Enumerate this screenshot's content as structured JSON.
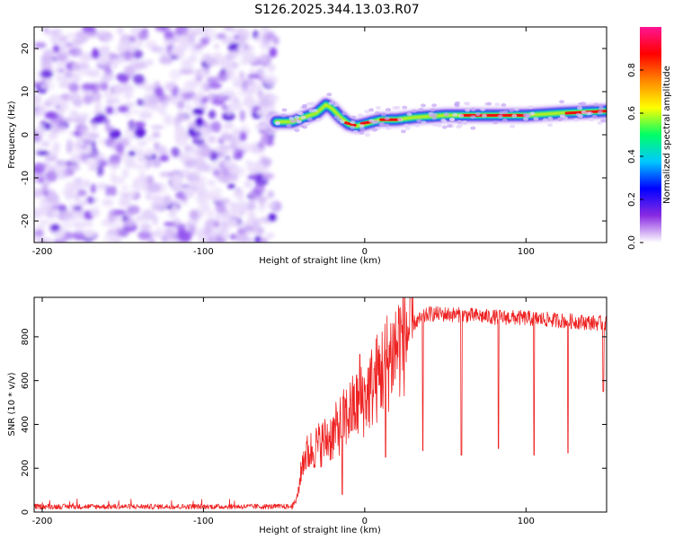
{
  "title": "S126.2025.344.13.03.R07",
  "colors": {
    "snr_line": "#ee2222",
    "speckle": "#7b2cf0",
    "background": "#ffffff"
  },
  "chart_data": [
    {
      "id": "spectrogram",
      "type": "heatmap",
      "xlabel": "Height of straight line (km)",
      "ylabel": "Frequency (Hz)",
      "xlim": [
        -205,
        150
      ],
      "ylim": [
        -25,
        25
      ],
      "xticks": [
        -200,
        -100,
        0,
        100
      ],
      "xtick_labels": [
        "-200",
        "-100",
        "0",
        "100"
      ],
      "yticks": [
        -20,
        -10,
        0,
        10,
        20
      ],
      "ytick_labels": [
        "-20",
        "-10",
        "0",
        "10",
        "20"
      ],
      "noise_region_x": [
        -205,
        -55
      ],
      "ridge_track": [
        {
          "x": -55,
          "y": 3
        },
        {
          "x": -45,
          "y": 3
        },
        {
          "x": -38,
          "y": 4
        },
        {
          "x": -30,
          "y": 5
        },
        {
          "x": -24,
          "y": 7
        },
        {
          "x": -20,
          "y": 6
        },
        {
          "x": -15,
          "y": 4
        },
        {
          "x": -10,
          "y": 2.5
        },
        {
          "x": -5,
          "y": 2
        },
        {
          "x": 0,
          "y": 2.5
        },
        {
          "x": 5,
          "y": 3
        },
        {
          "x": 10,
          "y": 3.5
        },
        {
          "x": 20,
          "y": 3.5
        },
        {
          "x": 30,
          "y": 4
        },
        {
          "x": 50,
          "y": 4.5
        },
        {
          "x": 70,
          "y": 4.5
        },
        {
          "x": 100,
          "y": 4.5
        },
        {
          "x": 120,
          "y": 5
        },
        {
          "x": 150,
          "y": 5.5
        }
      ],
      "colorbar": {
        "label": "Normalized spectral amplitude",
        "ticks": [
          0.0,
          0.2,
          0.4,
          0.6,
          0.8
        ],
        "tick_labels": [
          "0.0",
          "0.2",
          "0.4",
          "0.6",
          "0.8"
        ],
        "range": [
          0,
          1
        ],
        "stops": [
          "#ffffff",
          "#8a2be2",
          "#0000ff",
          "#00c8ff",
          "#00ff66",
          "#ffff00",
          "#ff8800",
          "#ff0000",
          "#ff1493"
        ]
      }
    },
    {
      "id": "snr",
      "type": "line",
      "xlabel": "Height of straight line (km)",
      "ylabel": "SNR (10 * v/v)",
      "xlim": [
        -205,
        150
      ],
      "ylim": [
        0,
        980
      ],
      "xticks": [
        -200,
        -100,
        0,
        100
      ],
      "xtick_labels": [
        "-200",
        "-100",
        "0",
        "100"
      ],
      "yticks": [
        0,
        200,
        400,
        600,
        800
      ],
      "ytick_labels": [
        "0",
        "200",
        "400",
        "600",
        "800"
      ],
      "series": [
        {
          "name": "SNR",
          "envelope": [
            {
              "x": -205,
              "y": 25
            },
            {
              "x": -45,
              "y": 25
            },
            {
              "x": -42,
              "y": 60
            },
            {
              "x": -38,
              "y": 250
            },
            {
              "x": -30,
              "y": 300
            },
            {
              "x": -20,
              "y": 350
            },
            {
              "x": -10,
              "y": 450
            },
            {
              "x": 0,
              "y": 520
            },
            {
              "x": 10,
              "y": 640
            },
            {
              "x": 20,
              "y": 760
            },
            {
              "x": 30,
              "y": 860
            },
            {
              "x": 40,
              "y": 905
            },
            {
              "x": 60,
              "y": 900
            },
            {
              "x": 80,
              "y": 890
            },
            {
              "x": 100,
              "y": 885
            },
            {
              "x": 120,
              "y": 875
            },
            {
              "x": 150,
              "y": 860
            }
          ],
          "dropouts": [
            {
              "x": 36,
              "y": 280
            },
            {
              "x": 60,
              "y": 260
            },
            {
              "x": 83,
              "y": 290
            },
            {
              "x": 105,
              "y": 260
            },
            {
              "x": 126,
              "y": 270
            },
            {
              "x": 148,
              "y": 550
            }
          ],
          "spikes": [
            {
              "x": -14,
              "y": 80
            },
            {
              "x": -3,
              "y": 720
            },
            {
              "x": 13,
              "y": 250
            }
          ]
        }
      ]
    }
  ]
}
